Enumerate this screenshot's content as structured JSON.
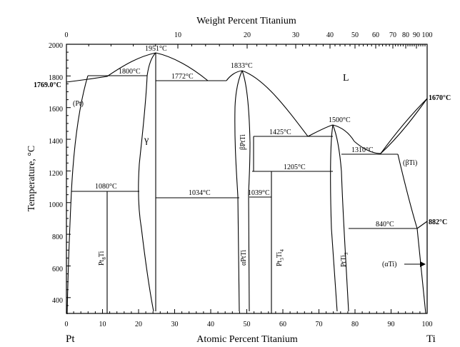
{
  "top_axis": {
    "title": "Weight Percent Titanium",
    "ticks": [
      "0",
      "10",
      "20",
      "30",
      "40",
      "50",
      "60",
      "70",
      "80",
      "90",
      "100"
    ]
  },
  "bottom_axis": {
    "title": "Atomic Percent Titanium",
    "ticks": [
      "0",
      "10",
      "20",
      "30",
      "40",
      "50",
      "60",
      "70",
      "80",
      "90",
      "100"
    ],
    "left_element": "Pt",
    "right_element": "Ti"
  },
  "left_axis": {
    "title": "Temperature, °C",
    "ticks": [
      "400",
      "600",
      "800",
      "1000",
      "1200",
      "1400",
      "1600",
      "1800",
      "2000"
    ]
  },
  "temperatures": {
    "pt_melt": "1769.0°C",
    "ti_melt": "1670°C",
    "ti_transition": "882°C",
    "t1951": "1951°C",
    "t1800": "1800°C",
    "t1772": "1772°C",
    "t1833": "1833°C",
    "t1500": "1500°C",
    "t1425": "1425°C",
    "t1310": "1310°C",
    "t1205": "1205°C",
    "t1080": "1080°C",
    "t1034": "1034°C",
    "t1039": "1039°C",
    "t840": "840°C"
  },
  "phases": {
    "liquid": "L",
    "pt_solid": "(Pt)",
    "gamma": "γ",
    "beta_ptti": "βPtTi",
    "beta_ti": "(βTi)",
    "alpha_ti": "(αTi)",
    "alpha_ptti": "αPtTi",
    "pt8ti": {
      "base": "Pt",
      "sub1": "8",
      "tail": "Ti"
    },
    "pt3ti4": {
      "base": "Pt",
      "sub1": "3",
      "mid": "Ti",
      "sub2": "4"
    },
    "ptti3": {
      "base": "PtTi",
      "sub1": "3"
    }
  }
}
